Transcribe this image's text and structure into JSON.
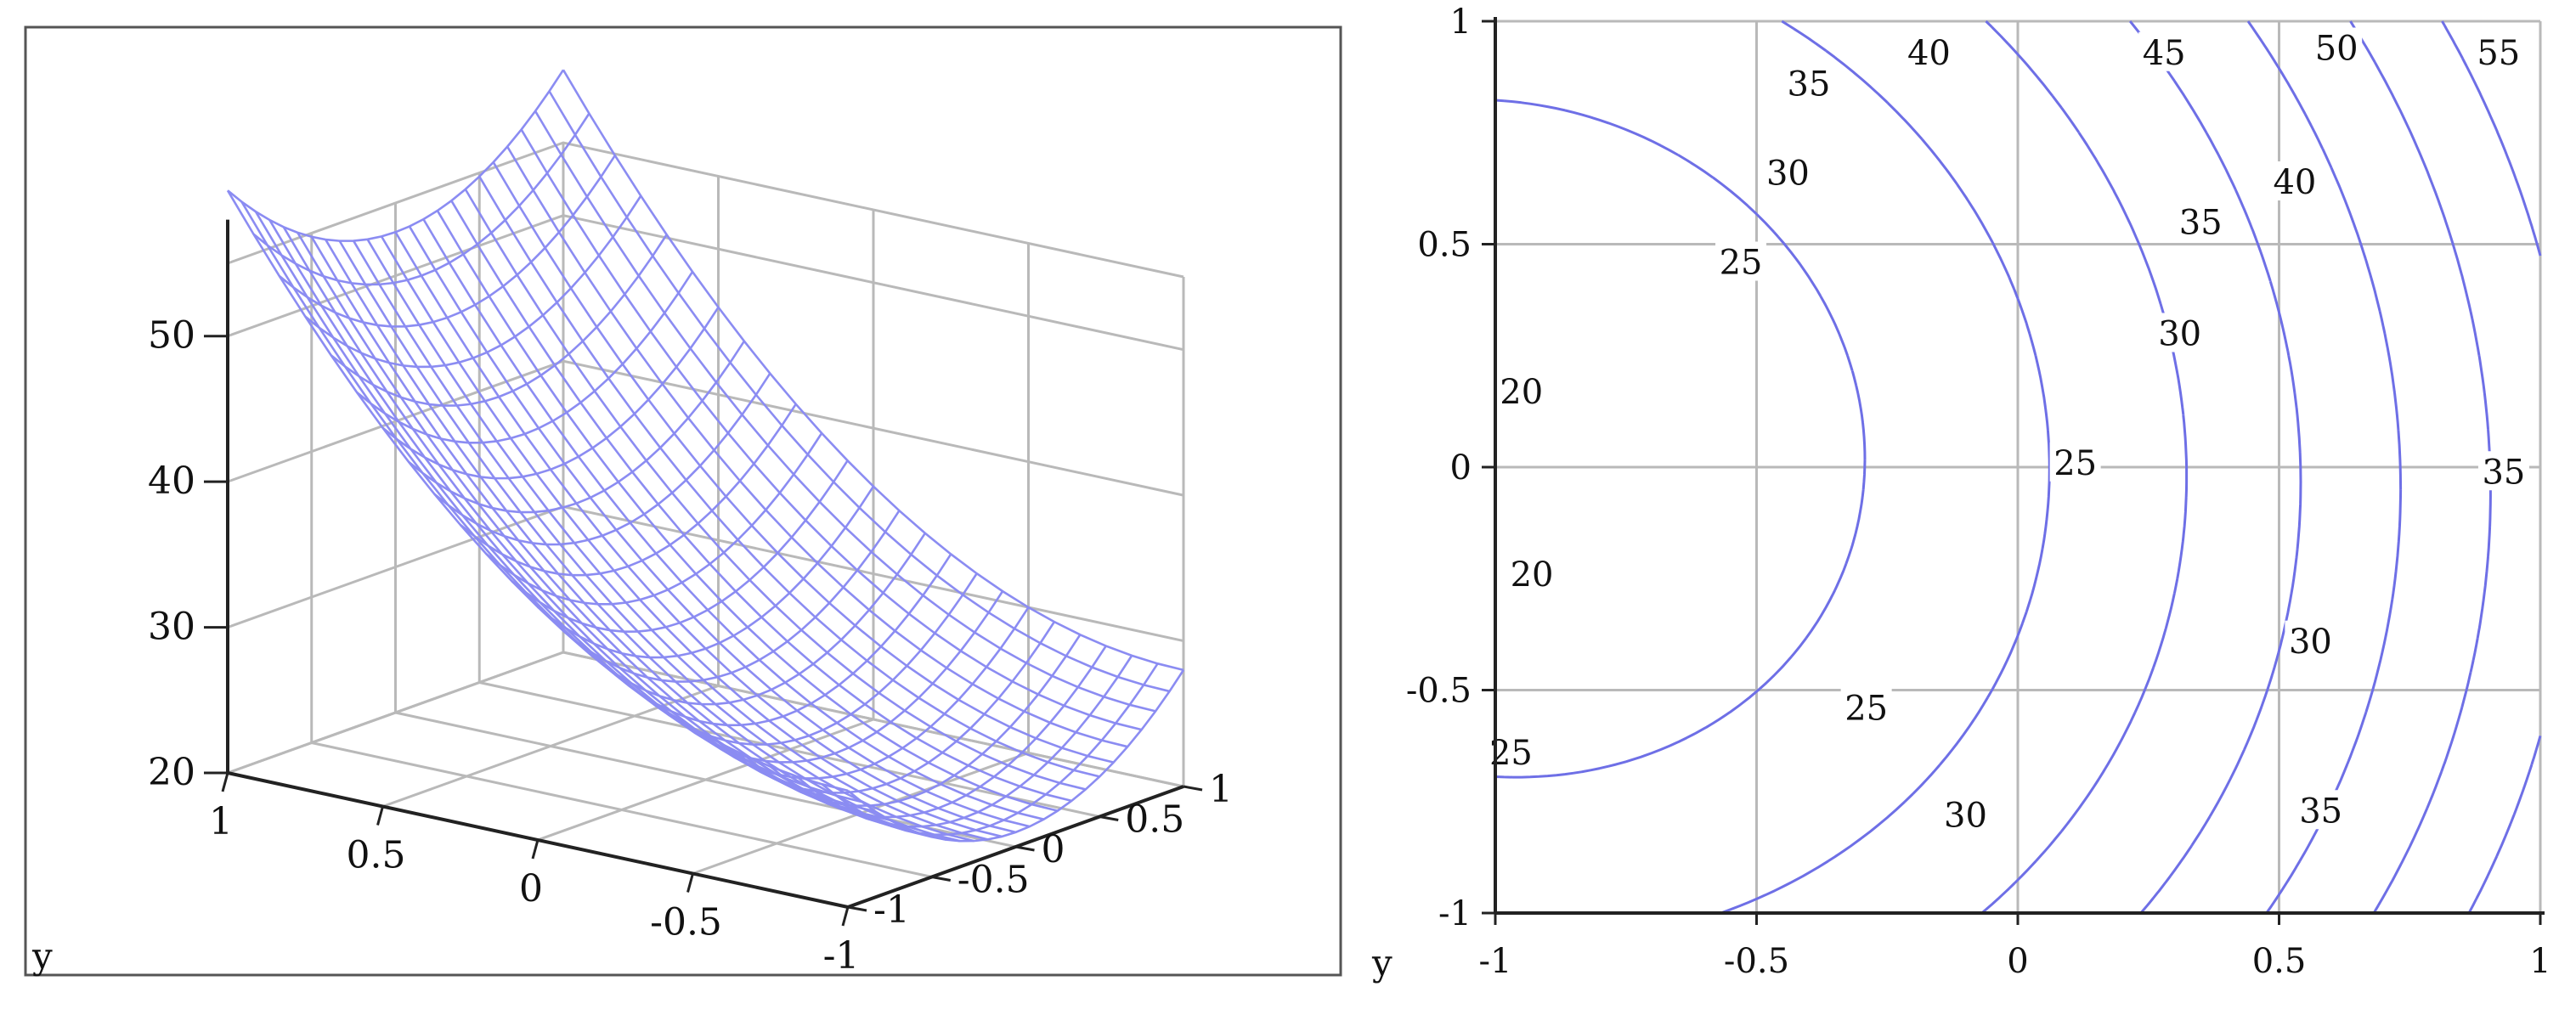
{
  "colors": {
    "surface": "#8b8cf2",
    "contour": "#6e6fe6",
    "grid": "#b9b9b9",
    "axis": "#222222",
    "box": "#555555"
  },
  "chart_data": [
    {
      "type": "surface",
      "xlabel": "y",
      "z_ticks": [
        "50",
        "40",
        "30",
        "20"
      ],
      "z_tick_values": [
        50,
        40,
        30,
        20
      ],
      "x_ticks": [
        "1",
        "0.5",
        "0",
        "-0.5",
        "-1"
      ],
      "x_tick_values": [
        1,
        0.5,
        0,
        -0.5,
        -1
      ],
      "y_ticks": [
        "1",
        "0.5",
        "0",
        "-0.5",
        "-1"
      ],
      "y_tick_values": [
        1,
        0.5,
        0,
        -0.5,
        -1
      ],
      "xlim": [
        -1,
        1
      ],
      "ylim": [
        -1,
        1
      ],
      "zlim": [
        20,
        55
      ],
      "grid": true
    },
    {
      "type": "contour",
      "xlabel": "y",
      "xlim": [
        -1,
        1
      ],
      "ylim": [
        -1,
        1
      ],
      "x_ticks": [
        "-1",
        "-0.5",
        "0",
        "0.5",
        "1"
      ],
      "x_tick_values": [
        -1,
        -0.5,
        0,
        0.5,
        1
      ],
      "y_ticks": [
        "1",
        "0.5",
        "0",
        "-0.5",
        "-1"
      ],
      "y_tick_values": [
        1,
        0.5,
        0,
        -0.5,
        -1
      ],
      "grid": true,
      "levels": [
        {
          "value": 20,
          "labels": [
            {
              "text": "20",
              "x": -0.95,
              "y": 0.17
            },
            {
              "text": "20",
              "x": -0.93,
              "y": -0.24
            }
          ]
        },
        {
          "value": 25,
          "labels": [
            {
              "text": "25",
              "x": -0.53,
              "y": 0.46
            },
            {
              "text": "25",
              "x": 0.11,
              "y": 0.01
            },
            {
              "text": "25",
              "x": -0.29,
              "y": -0.54
            },
            {
              "text": "25",
              "x": -0.97,
              "y": -0.64
            }
          ]
        },
        {
          "value": 30,
          "labels": [
            {
              "text": "30",
              "x": -0.44,
              "y": 0.66
            },
            {
              "text": "30",
              "x": 0.31,
              "y": 0.3
            },
            {
              "text": "30",
              "x": 0.56,
              "y": -0.39
            },
            {
              "text": "30",
              "x": -0.1,
              "y": -0.78
            }
          ]
        },
        {
          "value": 35,
          "labels": [
            {
              "text": "35",
              "x": -0.4,
              "y": 0.86
            },
            {
              "text": "35",
              "x": 0.35,
              "y": 0.55
            },
            {
              "text": "35",
              "x": 0.93,
              "y": -0.01
            },
            {
              "text": "35",
              "x": 0.58,
              "y": -0.77
            }
          ]
        },
        {
          "value": 40,
          "labels": [
            {
              "text": "40",
              "x": -0.17,
              "y": 0.93
            },
            {
              "text": "40",
              "x": 0.53,
              "y": 0.64
            }
          ]
        },
        {
          "value": 45,
          "labels": [
            {
              "text": "45",
              "x": 0.28,
              "y": 0.93
            }
          ]
        },
        {
          "value": 50,
          "labels": [
            {
              "text": "50",
              "x": 0.61,
              "y": 0.94
            }
          ]
        },
        {
          "value": 55,
          "labels": [
            {
              "text": "55",
              "x": 0.92,
              "y": 0.93
            }
          ]
        }
      ]
    }
  ]
}
